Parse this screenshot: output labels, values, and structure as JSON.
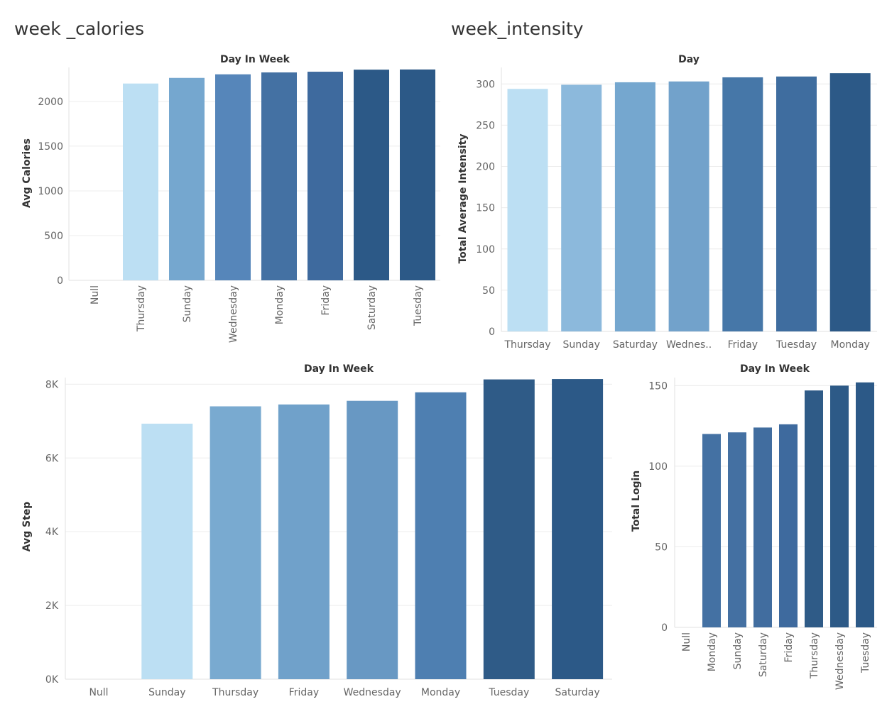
{
  "sheets": {
    "calories_title": "week _calories",
    "intensity_title": "week_intensity"
  },
  "chart_data": [
    {
      "id": "calories",
      "type": "bar",
      "xlabel": "Day In Week",
      "ylabel": "Avg Calories",
      "categories": [
        "Null",
        "Thursday",
        "Sunday",
        "Wednesday",
        "Monday",
        "Friday",
        "Saturday",
        "Tuesday"
      ],
      "values": [
        null,
        2200,
        2263,
        2303,
        2324,
        2332,
        2355,
        2357
      ],
      "colors": [
        "#bcdff3",
        "#bcdff3",
        "#75a7cf",
        "#5686ba",
        "#4471a3",
        "#3e6a9e",
        "#2c5987",
        "#2c5987"
      ],
      "yticks": [
        0,
        500,
        1000,
        1500,
        2000
      ],
      "ytick_labels": [
        "0",
        "500",
        "1000",
        "1500",
        "2000"
      ],
      "ylim": [
        0,
        2380
      ],
      "xtick_rotation": "vertical",
      "grid": true
    },
    {
      "id": "intensity",
      "type": "bar",
      "xlabel": "Day",
      "ylabel": "Total Average Intensity",
      "categories": [
        "Thursday",
        "Sunday",
        "Saturday",
        "Wednes..",
        "Friday",
        "Tuesday",
        "Monday"
      ],
      "values": [
        294,
        299,
        302,
        303,
        308,
        309,
        313
      ],
      "colors": [
        "#bcdff3",
        "#8cb9dc",
        "#75a7cf",
        "#72a2cb",
        "#4677a8",
        "#3f6d9f",
        "#2c5987"
      ],
      "yticks": [
        0,
        50,
        100,
        150,
        200,
        250,
        300
      ],
      "ytick_labels": [
        "0",
        "50",
        "100",
        "150",
        "200",
        "250",
        "300"
      ],
      "ylim": [
        0,
        320
      ],
      "xtick_rotation": "horizontal",
      "grid": true
    },
    {
      "id": "steps",
      "type": "bar",
      "xlabel": "Day In Week",
      "ylabel": "Avg Step",
      "categories": [
        "Null",
        "Sunday",
        "Thursday",
        "Friday",
        "Wednesday",
        "Monday",
        "Tuesday",
        "Saturday"
      ],
      "values": [
        null,
        6930,
        7400,
        7450,
        7550,
        7780,
        8130,
        8140
      ],
      "colors": [
        "#bcdff3",
        "#bcdff3",
        "#79aad0",
        "#70a1ca",
        "#6898c3",
        "#4e7fb1",
        "#2f5b87",
        "#2c5987"
      ],
      "yticks": [
        0,
        2000,
        4000,
        6000,
        8000
      ],
      "ytick_labels": [
        "0K",
        "2K",
        "4K",
        "6K",
        "8K"
      ],
      "ylim": [
        0,
        8180
      ],
      "xtick_rotation": "horizontal",
      "grid": true
    },
    {
      "id": "logins",
      "type": "bar",
      "xlabel": "Day In Week",
      "ylabel": "Total Login",
      "categories": [
        "Null",
        "Monday",
        "Sunday",
        "Saturday",
        "Friday",
        "Thursday",
        "Wednesday",
        "Tuesday"
      ],
      "values": [
        null,
        120,
        121,
        124,
        126,
        147,
        150,
        152
      ],
      "colors": [
        "#4471a3",
        "#4471a3",
        "#4470a2",
        "#416d9f",
        "#3e6a9e",
        "#2f5b87",
        "#2d5a87",
        "#2c5987"
      ],
      "yticks": [
        0,
        50,
        100,
        150
      ],
      "ytick_labels": [
        "0",
        "50",
        "100",
        "150"
      ],
      "ylim": [
        0,
        155
      ],
      "xtick_rotation": "vertical",
      "grid": true
    }
  ]
}
